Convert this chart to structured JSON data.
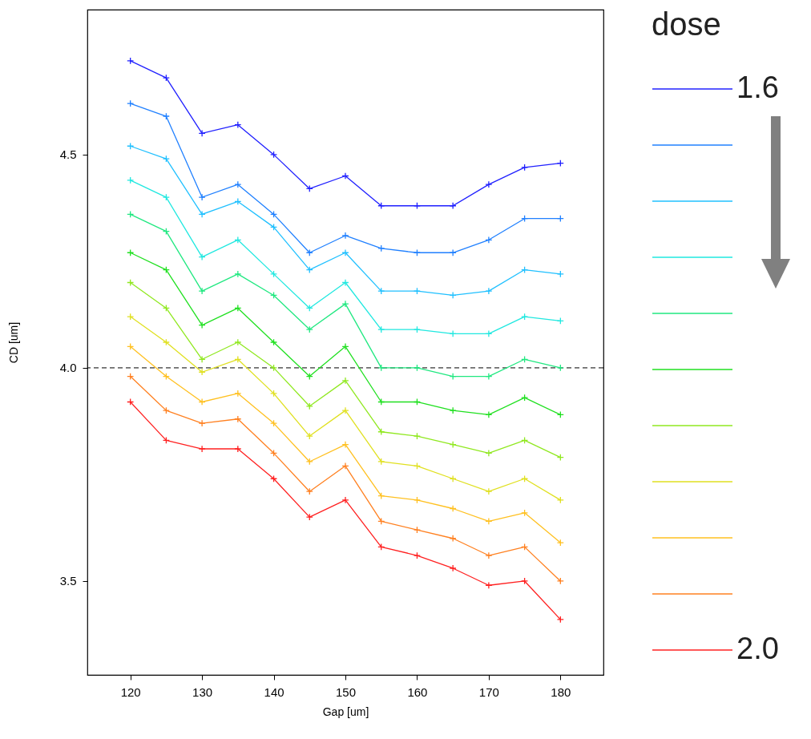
{
  "chart_data": {
    "type": "line",
    "xlabel": "Gap [um]",
    "ylabel": "CD [um]",
    "legend_title": "dose",
    "x": [
      120,
      125,
      130,
      135,
      140,
      145,
      150,
      155,
      160,
      165,
      170,
      175,
      180
    ],
    "xlim": [
      114,
      186
    ],
    "xticks": [
      120,
      130,
      140,
      150,
      160,
      170,
      180
    ],
    "ylim": [
      3.28,
      4.84
    ],
    "yticks": [
      3.5,
      {
        "value": 4,
        "label": "4.0"
      },
      4.5
    ],
    "grid": false,
    "legend": "right",
    "marker": "cross",
    "line_style": "solid",
    "ref_lines": [
      {
        "axis": "y",
        "value": 4.0,
        "line_style": "dashed",
        "color": "#000000"
      }
    ],
    "series": [
      {
        "name": "1.6",
        "color": "#2020ff",
        "values": [
          4.72,
          4.68,
          4.55,
          4.57,
          4.5,
          4.42,
          4.45,
          4.38,
          4.38,
          4.38,
          4.43,
          4.47,
          4.48
        ]
      },
      {
        "color": "#2080ff",
        "values": [
          4.62,
          4.59,
          4.4,
          4.43,
          4.36,
          4.27,
          4.31,
          4.28,
          4.27,
          4.27,
          4.3,
          4.35,
          4.35
        ]
      },
      {
        "color": "#20c0ff",
        "values": [
          4.52,
          4.49,
          4.36,
          4.39,
          4.33,
          4.23,
          4.27,
          4.18,
          4.18,
          4.17,
          4.18,
          4.23,
          4.22
        ]
      },
      {
        "color": "#20e8e0",
        "values": [
          4.44,
          4.4,
          4.26,
          4.3,
          4.22,
          4.14,
          4.2,
          4.09,
          4.09,
          4.08,
          4.08,
          4.12,
          4.11
        ]
      },
      {
        "color": "#20e880",
        "values": [
          4.36,
          4.32,
          4.18,
          4.22,
          4.17,
          4.09,
          4.15,
          4.0,
          4.0,
          3.98,
          3.98,
          4.02,
          4.0
        ]
      },
      {
        "color": "#20e020",
        "values": [
          4.27,
          4.23,
          4.1,
          4.14,
          4.06,
          3.98,
          4.05,
          3.92,
          3.92,
          3.9,
          3.89,
          3.93,
          3.89
        ]
      },
      {
        "color": "#90e820",
        "values": [
          4.2,
          4.14,
          4.02,
          4.06,
          4.0,
          3.91,
          3.97,
          3.85,
          3.84,
          3.82,
          3.8,
          3.83,
          3.79
        ]
      },
      {
        "color": "#e0e020",
        "values": [
          4.12,
          4.06,
          3.99,
          4.02,
          3.94,
          3.84,
          3.9,
          3.78,
          3.77,
          3.74,
          3.71,
          3.74,
          3.69
        ]
      },
      {
        "color": "#ffc020",
        "values": [
          4.05,
          3.98,
          3.92,
          3.94,
          3.87,
          3.78,
          3.82,
          3.7,
          3.69,
          3.67,
          3.64,
          3.66,
          3.59
        ]
      },
      {
        "color": "#ff8020",
        "values": [
          3.98,
          3.9,
          3.87,
          3.88,
          3.8,
          3.71,
          3.77,
          3.64,
          3.62,
          3.6,
          3.56,
          3.58,
          3.5
        ]
      },
      {
        "name": "2.0",
        "color": "#ff2020",
        "values": [
          3.92,
          3.83,
          3.81,
          3.81,
          3.74,
          3.65,
          3.69,
          3.58,
          3.56,
          3.53,
          3.49,
          3.5,
          3.41
        ]
      }
    ]
  }
}
